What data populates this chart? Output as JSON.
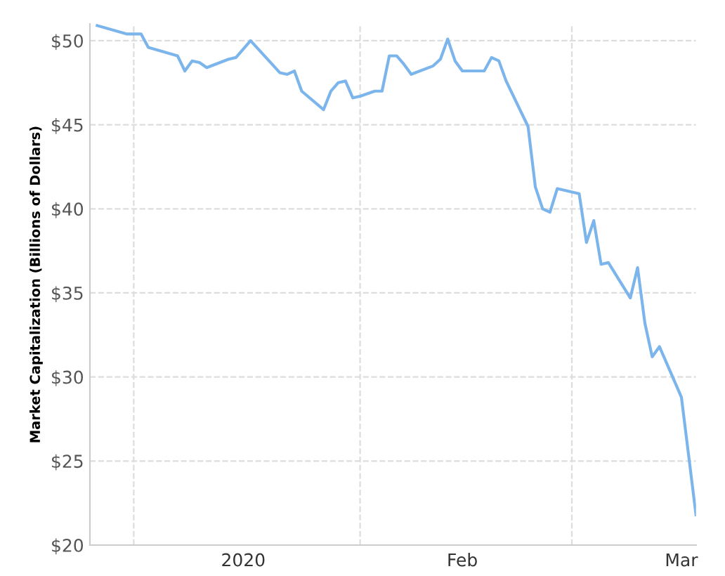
{
  "chart_data": {
    "type": "line",
    "ylabel": "Market Capitalization (Billions of Dollars)",
    "x": [
      "2019-12-27",
      "2019-12-31",
      "2020-01-02",
      "2020-01-03",
      "2020-01-07",
      "2020-01-08",
      "2020-01-09",
      "2020-01-10",
      "2020-01-11",
      "2020-01-14",
      "2020-01-15",
      "2020-01-17",
      "2020-01-21",
      "2020-01-22",
      "2020-01-23",
      "2020-01-24",
      "2020-01-27",
      "2020-01-28",
      "2020-01-29",
      "2020-01-30",
      "2020-01-31",
      "2020-02-01",
      "2020-02-03",
      "2020-02-04",
      "2020-02-05",
      "2020-02-06",
      "2020-02-07",
      "2020-02-08",
      "2020-02-11",
      "2020-02-12",
      "2020-02-13",
      "2020-02-14",
      "2020-02-15",
      "2020-02-18",
      "2020-02-19",
      "2020-02-20",
      "2020-02-21",
      "2020-02-24",
      "2020-02-25",
      "2020-02-26",
      "2020-02-27",
      "2020-02-28",
      "2020-03-02",
      "2020-03-03",
      "2020-03-04",
      "2020-03-05",
      "2020-03-06",
      "2020-03-09",
      "2020-03-10",
      "2020-03-11",
      "2020-03-12",
      "2020-03-13",
      "2020-03-16",
      "2020-03-18"
    ],
    "series": [
      {
        "color": "#7cb5ec",
        "values": [
          50.9,
          50.4,
          50.4,
          49.6,
          49.1,
          48.2,
          48.8,
          48.7,
          48.4,
          48.9,
          49.0,
          50.0,
          48.1,
          48.0,
          48.2,
          47.0,
          45.9,
          47.0,
          47.5,
          47.6,
          46.6,
          46.7,
          47.0,
          47.0,
          49.1,
          49.1,
          48.6,
          48.0,
          48.5,
          48.9,
          50.1,
          48.8,
          48.2,
          48.2,
          49.0,
          48.8,
          47.6,
          44.9,
          41.3,
          40.0,
          39.8,
          41.2,
          40.9,
          38.0,
          39.3,
          36.7,
          36.8,
          34.7,
          36.5,
          33.2,
          31.2,
          31.8,
          28.8,
          21.8
        ]
      }
    ],
    "xlim": [
      "2019-12-26",
      "2020-03-18"
    ],
    "xticks": [
      {
        "value": "2020-01-01",
        "label": null
      },
      {
        "value": "2020-01-16",
        "label": "2020"
      },
      {
        "value": "2020-02-01",
        "label": null
      },
      {
        "value": "2020-02-15",
        "label": "Feb"
      },
      {
        "value": "2020-03-01",
        "label": null
      },
      {
        "value": "2020-03-16",
        "label": "Mar"
      }
    ],
    "ylim": [
      20,
      51
    ],
    "yticks": [
      {
        "value": 20,
        "label": "$20"
      },
      {
        "value": 25,
        "label": "$25"
      },
      {
        "value": 30,
        "label": "$30"
      },
      {
        "value": 35,
        "label": "$35"
      },
      {
        "value": 40,
        "label": "$40"
      },
      {
        "value": 45,
        "label": "$45"
      },
      {
        "value": 50,
        "label": "$50"
      }
    ],
    "grid": true,
    "legend": false,
    "marker": "none",
    "line_style": "solid"
  }
}
